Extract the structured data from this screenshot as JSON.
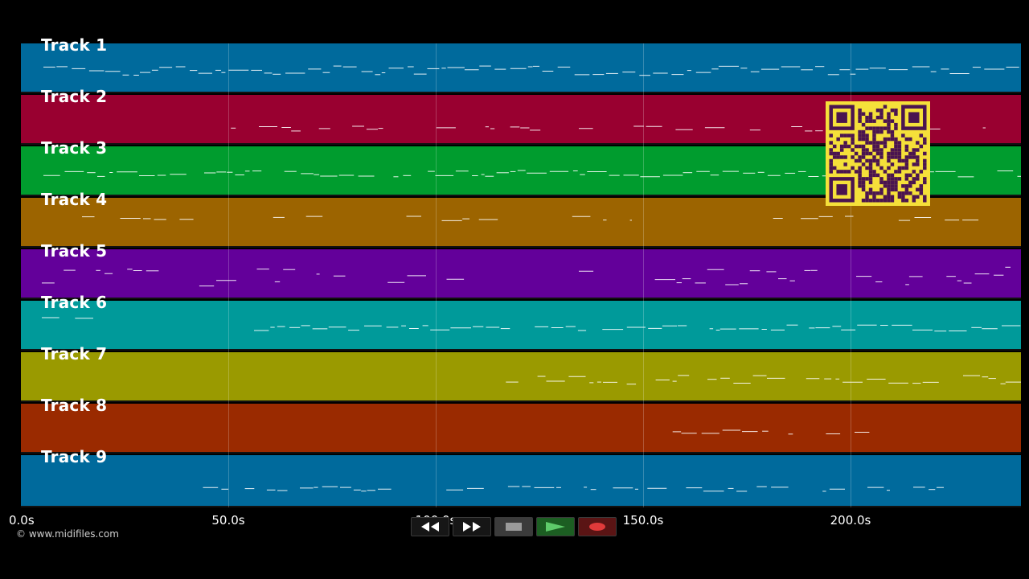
{
  "tracks": [
    {
      "label": "Track 1",
      "color": "#006a9c"
    },
    {
      "label": "Track 2",
      "color": "#990030"
    },
    {
      "label": "Track 3",
      "color": "#009c2e"
    },
    {
      "label": "Track 4",
      "color": "#9c6400"
    },
    {
      "label": "Track 5",
      "color": "#63009a"
    },
    {
      "label": "Track 6",
      "color": "#009a9a"
    },
    {
      "label": "Track 7",
      "color": "#9a9a00"
    },
    {
      "label": "Track 8",
      "color": "#9a2a00"
    },
    {
      "label": "Track 9",
      "color": "#006a9c"
    }
  ],
  "timeline": {
    "ticks": [
      "0.0s",
      "50.0s",
      "100.0s",
      "150.0s",
      "200.0s"
    ],
    "tick_values_seconds": [
      0,
      50,
      100,
      150,
      200
    ],
    "visible_range_seconds": [
      0,
      241
    ]
  },
  "transport": {
    "rewind_icon": "rewind-icon",
    "fast_forward_icon": "fast-forward-icon",
    "stop_icon": "stop-icon",
    "play_icon": "play-icon",
    "record_icon": "record-icon"
  },
  "copyright": "© www.midifiles.com",
  "qr": {
    "icon": "qr-code-icon",
    "fg": "#4a1450",
    "bg": "#f5e03a"
  },
  "colors": {
    "background": "#000000",
    "note": "#ffffff",
    "play_green": "#5ecb6a",
    "record_red": "#e03a3a",
    "stop_gray": "#9a9a9a"
  }
}
